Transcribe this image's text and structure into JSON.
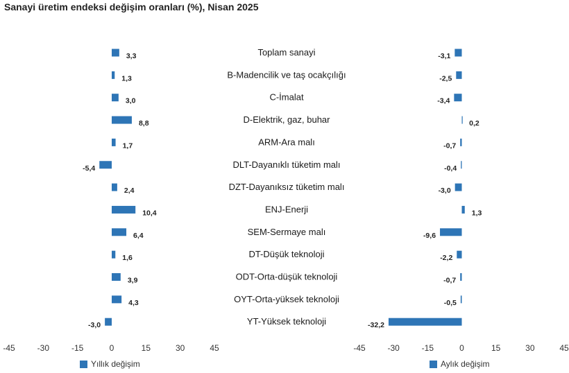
{
  "title": "Sanayi üretim endeksi değişim oranları (%), Nisan 2025",
  "chart_data": {
    "type": "bar",
    "orientation": "horizontal",
    "title": "Sanayi üretim endeksi değişim oranları (%), Nisan 2025",
    "categories": [
      "Toplam sanayi",
      "B-Madencilik ve taş ocakçılığı",
      "C-İmalat",
      "D-Elektrik, gaz, buhar",
      "ARM-Ara malı",
      "DLT-Dayanıklı tüketim malı",
      "DZT-Dayanıksız tüketim malı",
      "ENJ-Enerji",
      "SEM-Sermaye malı",
      "DT-Düşük teknoloji",
      "ODT-Orta-düşük teknoloji",
      "OYT-Orta-yüksek teknoloji",
      "YT-Yüksek teknoloji"
    ],
    "series": [
      {
        "name": "Yıllık değişim",
        "values": [
          3.3,
          1.3,
          3.0,
          8.8,
          1.7,
          -5.4,
          2.4,
          10.4,
          6.4,
          1.6,
          3.9,
          4.3,
          -3.0
        ],
        "labels": [
          "3,3",
          "1,3",
          "3,0",
          "8,8",
          "1,7",
          "-5,4",
          "2,4",
          "10,4",
          "6,4",
          "1,6",
          "3,9",
          "4,3",
          "-3,0"
        ]
      },
      {
        "name": "Aylık değişim",
        "values": [
          -3.1,
          -2.5,
          -3.4,
          0.2,
          -0.7,
          -0.4,
          -3.0,
          1.3,
          -9.6,
          -2.2,
          -0.7,
          -0.5,
          -32.2
        ],
        "labels": [
          "-3,1",
          "-2,5",
          "-3,4",
          "0,2",
          "-0,7",
          "-0,4",
          "-3,0",
          "1,3",
          "-9,6",
          "-2,2",
          "-0,7",
          "-0,5",
          "-32,2"
        ]
      }
    ],
    "xlim": [
      -45,
      45
    ],
    "xticks": [
      "-45",
      "-30",
      "-15",
      "0",
      "15",
      "30",
      "45"
    ],
    "xtick_values": [
      -45,
      -30,
      -15,
      0,
      15,
      30,
      45
    ],
    "bar_color": "#2e75b6",
    "grid": false,
    "legend_position": "bottom"
  }
}
